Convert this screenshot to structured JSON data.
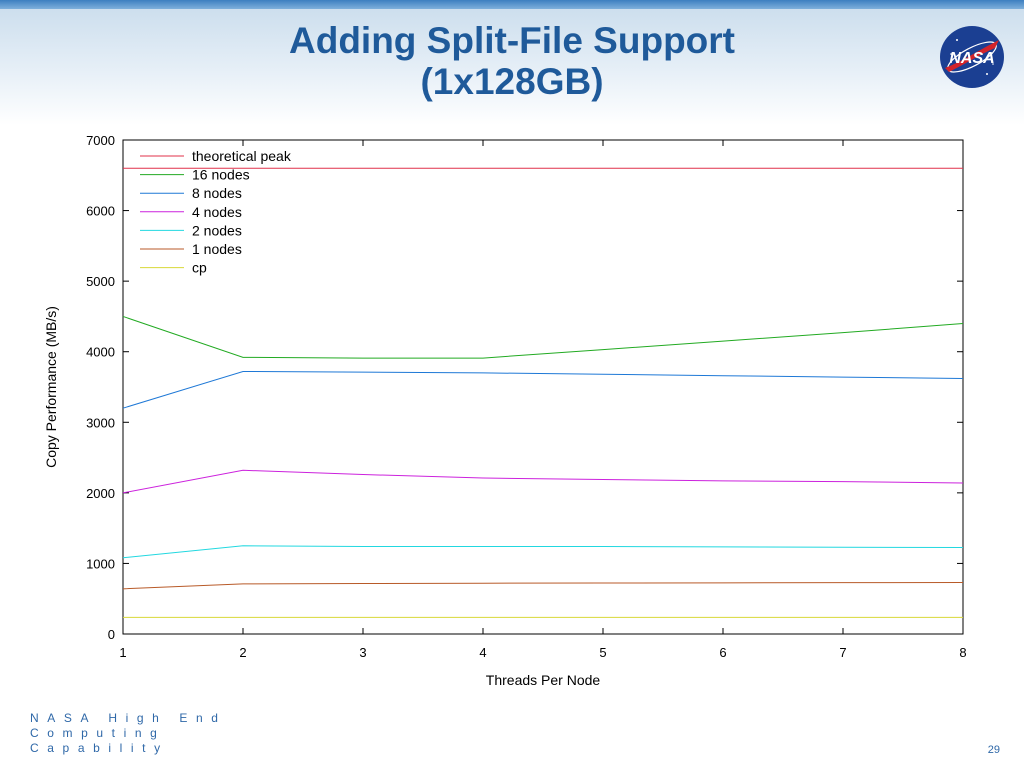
{
  "slide": {
    "title_line1": "Adding Split-File Support",
    "title_line2": "(1x128GB)",
    "footer_line1": "NASA High End",
    "footer_line2": "Computing",
    "footer_line3": "Capability",
    "page_number": "29",
    "logo_text": "NASA"
  },
  "colors": {
    "title": "#1f5a9a",
    "footer": "#2f68a8"
  },
  "chart_data": {
    "type": "line",
    "title": "",
    "xlabel": "Threads Per Node",
    "ylabel": "Copy Performance (MB/s)",
    "xlim": [
      1,
      8
    ],
    "ylim": [
      0,
      7000
    ],
    "x_ticks": [
      "1",
      "2",
      "3",
      "4",
      "5",
      "6",
      "7",
      "8"
    ],
    "y_ticks": [
      "0",
      "1000",
      "2000",
      "3000",
      "4000",
      "5000",
      "6000",
      "7000"
    ],
    "grid": false,
    "legend_position": "top-left",
    "x": [
      1,
      2,
      3,
      4,
      5,
      6,
      7,
      8
    ],
    "series": [
      {
        "name": "theoretical peak",
        "color": "#e0304a",
        "values": [
          6600,
          6600,
          6600,
          6600,
          6600,
          6600,
          6600,
          6600
        ]
      },
      {
        "name": "16 nodes",
        "color": "#22aa22",
        "values": [
          4500,
          3920,
          3910,
          3910,
          4030,
          4150,
          4270,
          4400
        ]
      },
      {
        "name": "8 nodes",
        "color": "#1e78d6",
        "values": [
          3200,
          3720,
          3710,
          3700,
          3680,
          3660,
          3640,
          3620
        ]
      },
      {
        "name": "4 nodes",
        "color": "#cc22dd",
        "values": [
          2000,
          2320,
          2260,
          2210,
          2190,
          2170,
          2160,
          2140
        ]
      },
      {
        "name": "2 nodes",
        "color": "#22d8e0",
        "values": [
          1080,
          1250,
          1240,
          1240,
          1240,
          1235,
          1230,
          1225
        ]
      },
      {
        "name": "1 nodes",
        "color": "#b85a28",
        "values": [
          640,
          710,
          715,
          720,
          722,
          725,
          728,
          730
        ]
      },
      {
        "name": "cp",
        "color": "#d8d838",
        "values": [
          235,
          235,
          235,
          235,
          235,
          235,
          235,
          235
        ]
      }
    ]
  }
}
